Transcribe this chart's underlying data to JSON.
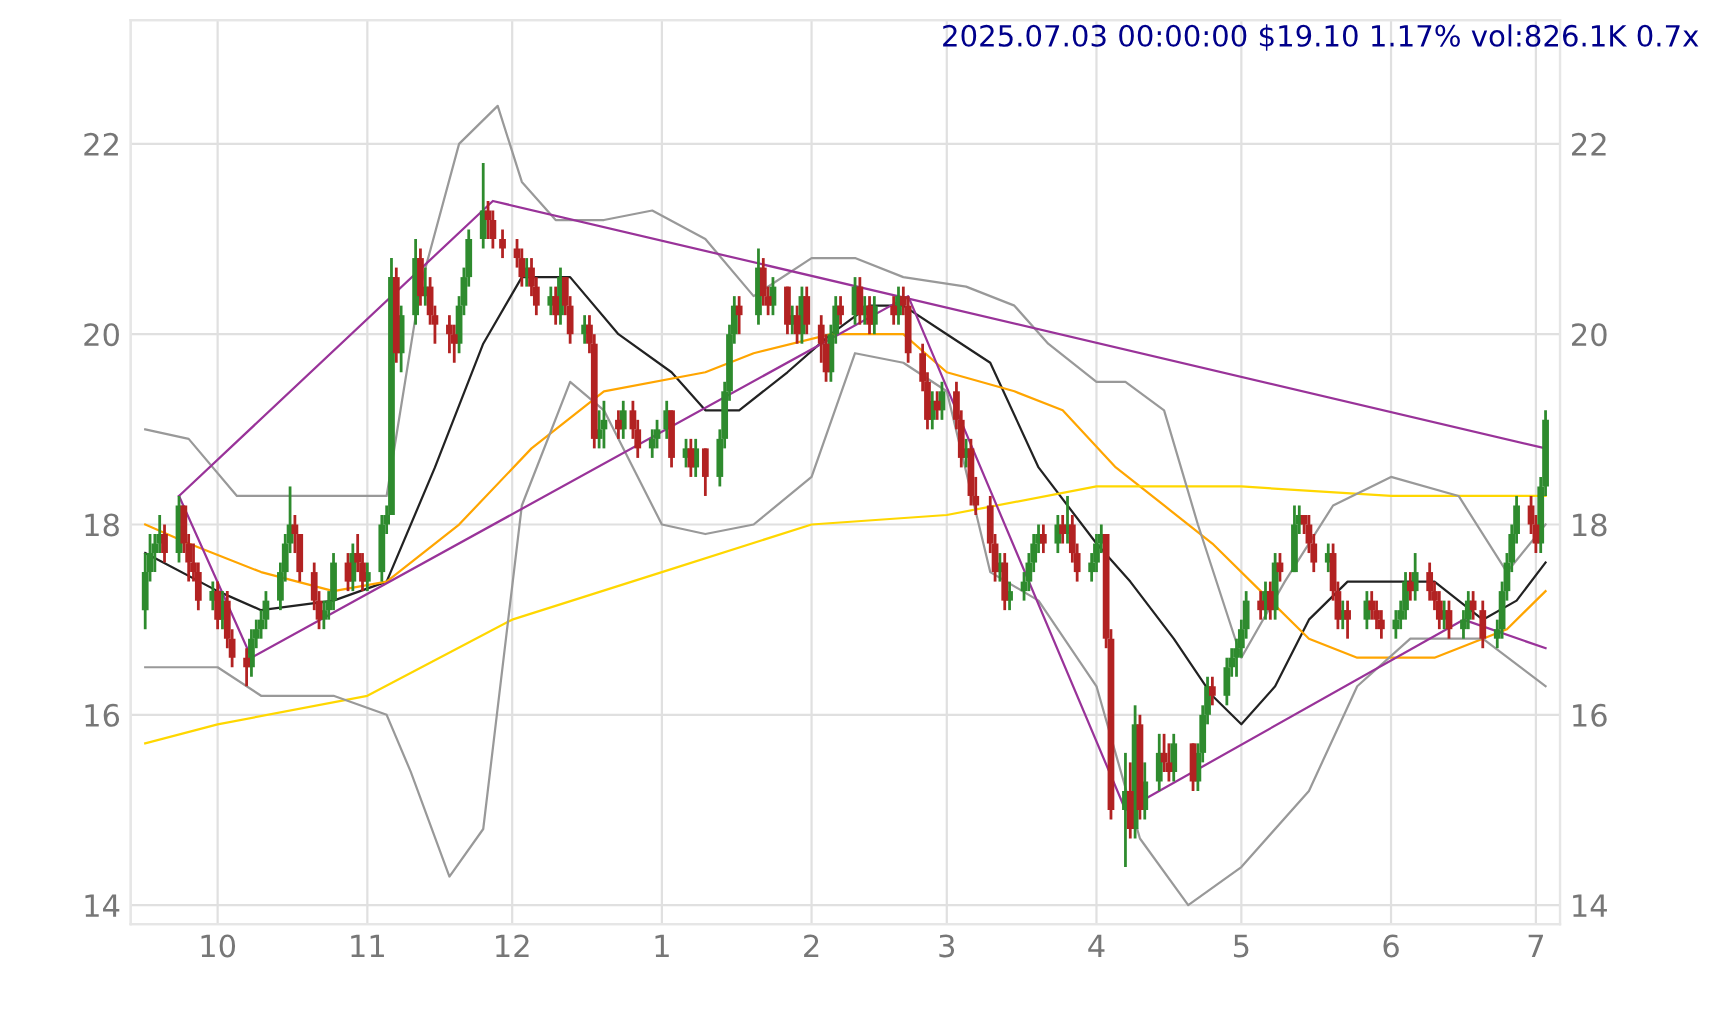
{
  "chart_data": {
    "type": "candlestick",
    "title": "2025.07.03 00:00:00 $19.10 1.17% vol:826.1K 0.7x",
    "xlim": [
      "2024-09-13",
      "2025-07-06"
    ],
    "xticks": [
      {
        "value": "2024-10-01",
        "label": "10"
      },
      {
        "value": "2024-11-01",
        "label": "11"
      },
      {
        "value": "2024-12-01",
        "label": "12"
      },
      {
        "value": "2025-01-01",
        "label": "1"
      },
      {
        "value": "2025-02-01",
        "label": "2"
      },
      {
        "value": "2025-03-01",
        "label": "3"
      },
      {
        "value": "2025-04-01",
        "label": "4"
      },
      {
        "value": "2025-05-01",
        "label": "5"
      },
      {
        "value": "2025-06-01",
        "label": "6"
      },
      {
        "value": "2025-07-01",
        "label": "7"
      }
    ],
    "ylim": [
      13.8,
      23.3
    ],
    "yticks": [
      14,
      16,
      18,
      20,
      22
    ],
    "y2lim": [
      13.8,
      23.3
    ],
    "y2ticks": [
      14,
      16,
      18,
      20,
      22
    ],
    "grid": true,
    "series": [
      {
        "color": "#2e8b2e",
        "x": [
          "2024-09-16",
          "2024-09-17",
          "2024-09-18",
          "2024-09-19",
          "2024-09-23",
          "2024-09-30",
          "2024-10-02",
          "2024-10-08",
          "2024-10-09",
          "2024-10-10",
          "2024-10-11",
          "2024-10-14",
          "2024-10-15",
          "2024-10-16",
          "2024-10-23",
          "2024-10-24",
          "2024-10-25",
          "2024-10-29",
          "2024-11-01",
          "2024-11-04",
          "2024-11-05",
          "2024-11-06",
          "2024-11-08",
          "2024-11-11",
          "2024-11-13",
          "2024-11-20",
          "2024-11-21",
          "2024-11-22",
          "2024-11-25",
          "2024-12-04",
          "2024-12-09",
          "2024-12-11",
          "2024-12-16",
          "2024-12-19",
          "2024-12-20",
          "2024-12-24",
          "2024-12-30",
          "2024-12-31",
          "2025-01-02",
          "2025-01-06",
          "2025-01-08",
          "2025-01-13",
          "2025-01-14",
          "2025-01-15",
          "2025-01-16",
          "2025-01-21",
          "2025-01-24",
          "2025-01-28",
          "2025-01-30",
          "2025-02-05",
          "2025-02-06",
          "2025-02-10",
          "2025-02-12",
          "2025-02-14",
          "2025-02-19",
          "2025-02-26",
          "2025-02-28",
          "2025-03-05",
          "2025-03-12",
          "2025-03-14",
          "2025-03-17",
          "2025-03-18",
          "2025-03-19",
          "2025-03-20",
          "2025-03-24",
          "2025-03-26",
          "2025-03-31",
          "2025-04-01",
          "2025-04-02",
          "2025-04-07",
          "2025-04-09",
          "2025-04-11",
          "2025-04-14",
          "2025-04-17",
          "2025-04-22",
          "2025-04-23",
          "2025-04-24",
          "2025-04-28",
          "2025-04-29",
          "2025-04-30",
          "2025-05-01",
          "2025-05-02",
          "2025-05-06",
          "2025-05-08",
          "2025-05-12",
          "2025-05-13",
          "2025-05-19",
          "2025-05-22",
          "2025-05-27",
          "2025-06-02",
          "2025-06-03",
          "2025-06-04",
          "2025-06-06",
          "2025-06-12",
          "2025-06-16",
          "2025-06-17",
          "2025-06-23",
          "2025-06-24",
          "2025-06-25",
          "2025-06-26",
          "2025-06-27",
          "2025-07-02",
          "2025-07-03"
        ],
        "ohlc": [
          [
            17.1,
            17.7,
            16.9,
            17.5
          ],
          [
            17.5,
            17.9,
            17.4,
            17.7
          ],
          [
            17.7,
            17.9,
            17.5,
            17.8
          ],
          [
            17.8,
            18.1,
            17.7,
            17.9
          ],
          [
            17.7,
            18.3,
            17.6,
            18.2
          ],
          [
            17.2,
            17.4,
            17.1,
            17.3
          ],
          [
            17.0,
            17.3,
            16.9,
            17.2
          ],
          [
            16.5,
            16.9,
            16.4,
            16.8
          ],
          [
            16.8,
            17.0,
            16.7,
            16.9
          ],
          [
            16.9,
            17.1,
            16.8,
            17.0
          ],
          [
            17.0,
            17.3,
            16.9,
            17.2
          ],
          [
            17.2,
            17.6,
            17.1,
            17.5
          ],
          [
            17.5,
            17.9,
            17.4,
            17.8
          ],
          [
            17.8,
            18.4,
            17.7,
            18.0
          ],
          [
            17.0,
            17.2,
            16.9,
            17.1
          ],
          [
            17.1,
            17.3,
            17.0,
            17.2
          ],
          [
            17.2,
            17.7,
            17.1,
            17.6
          ],
          [
            17.4,
            17.8,
            17.3,
            17.7
          ],
          [
            17.4,
            17.6,
            17.3,
            17.5
          ],
          [
            17.5,
            18.1,
            17.4,
            18.0
          ],
          [
            18.0,
            18.2,
            17.9,
            18.1
          ],
          [
            18.1,
            20.8,
            18.1,
            20.6
          ],
          [
            19.8,
            20.3,
            19.6,
            20.2
          ],
          [
            20.2,
            21.0,
            20.1,
            20.8
          ],
          [
            20.4,
            20.7,
            20.3,
            20.5
          ],
          [
            19.9,
            20.4,
            19.8,
            20.3
          ],
          [
            20.3,
            20.7,
            20.2,
            20.6
          ],
          [
            20.6,
            21.1,
            20.5,
            21.0
          ],
          [
            21.0,
            21.8,
            20.9,
            21.3
          ],
          [
            20.6,
            20.8,
            20.5,
            20.7
          ],
          [
            20.3,
            20.5,
            20.2,
            20.4
          ],
          [
            20.2,
            20.7,
            20.1,
            20.6
          ],
          [
            20.0,
            20.2,
            19.9,
            20.1
          ],
          [
            18.9,
            19.2,
            18.8,
            19.0
          ],
          [
            19.0,
            19.3,
            18.8,
            19.1
          ],
          [
            19.0,
            19.3,
            18.9,
            19.2
          ],
          [
            18.8,
            19.0,
            18.7,
            18.9
          ],
          [
            18.9,
            19.1,
            18.8,
            19.0
          ],
          [
            19.0,
            19.3,
            18.9,
            19.2
          ],
          [
            18.7,
            18.9,
            18.6,
            18.8
          ],
          [
            18.6,
            18.9,
            18.5,
            18.8
          ],
          [
            18.5,
            19.0,
            18.4,
            18.9
          ],
          [
            18.9,
            19.5,
            18.8,
            19.4
          ],
          [
            19.4,
            20.1,
            19.3,
            20.0
          ],
          [
            20.0,
            20.4,
            19.9,
            20.3
          ],
          [
            20.2,
            20.9,
            20.1,
            20.7
          ],
          [
            20.3,
            20.6,
            20.2,
            20.5
          ],
          [
            20.1,
            20.3,
            20.0,
            20.2
          ],
          [
            20.0,
            20.5,
            19.9,
            20.4
          ],
          [
            19.6,
            20.1,
            19.5,
            20.0
          ],
          [
            20.0,
            20.4,
            19.9,
            20.3
          ],
          [
            20.2,
            20.6,
            20.1,
            20.5
          ],
          [
            20.2,
            20.4,
            20.1,
            20.3
          ],
          [
            20.1,
            20.4,
            20.0,
            20.3
          ],
          [
            20.2,
            20.5,
            20.1,
            20.4
          ],
          [
            19.1,
            19.4,
            19.0,
            19.3
          ],
          [
            19.2,
            19.5,
            19.1,
            19.4
          ],
          [
            18.7,
            18.9,
            18.6,
            18.8
          ],
          [
            17.5,
            17.7,
            17.4,
            17.6
          ],
          [
            17.2,
            17.4,
            17.1,
            17.3
          ],
          [
            17.3,
            17.5,
            17.2,
            17.4
          ],
          [
            17.4,
            17.7,
            17.3,
            17.6
          ],
          [
            17.6,
            17.9,
            17.5,
            17.8
          ],
          [
            17.8,
            18.0,
            17.7,
            17.9
          ],
          [
            17.8,
            18.1,
            17.7,
            18.0
          ],
          [
            17.9,
            18.3,
            17.8,
            18.0
          ],
          [
            17.5,
            17.7,
            17.4,
            17.6
          ],
          [
            17.6,
            17.9,
            17.5,
            17.8
          ],
          [
            17.8,
            18.0,
            17.7,
            17.9
          ],
          [
            15.0,
            15.6,
            14.4,
            15.2
          ],
          [
            14.8,
            16.1,
            14.7,
            15.9
          ],
          [
            15.0,
            15.5,
            14.9,
            15.3
          ],
          [
            15.3,
            15.8,
            15.2,
            15.6
          ],
          [
            15.4,
            15.8,
            15.3,
            15.7
          ],
          [
            15.3,
            15.7,
            15.2,
            15.6
          ],
          [
            15.6,
            16.1,
            15.5,
            16.0
          ],
          [
            16.0,
            16.4,
            15.9,
            16.3
          ],
          [
            16.2,
            16.6,
            16.1,
            16.5
          ],
          [
            16.5,
            16.7,
            16.4,
            16.6
          ],
          [
            16.6,
            16.8,
            16.4,
            16.7
          ],
          [
            16.7,
            17.0,
            16.6,
            16.9
          ],
          [
            16.9,
            17.3,
            16.8,
            17.2
          ],
          [
            17.1,
            17.4,
            17.0,
            17.3
          ],
          [
            17.1,
            17.7,
            17.0,
            17.6
          ],
          [
            17.5,
            18.2,
            17.5,
            18.0
          ],
          [
            18.0,
            18.2,
            17.9,
            18.1
          ],
          [
            17.6,
            17.8,
            17.5,
            17.7
          ],
          [
            17.0,
            17.2,
            16.9,
            17.1
          ],
          [
            17.0,
            17.3,
            16.9,
            17.2
          ],
          [
            16.9,
            17.1,
            16.8,
            17.0
          ],
          [
            17.0,
            17.2,
            16.9,
            17.1
          ],
          [
            17.1,
            17.5,
            17.0,
            17.4
          ],
          [
            17.3,
            17.7,
            17.2,
            17.5
          ],
          [
            17.0,
            17.2,
            16.9,
            17.1
          ],
          [
            16.9,
            17.1,
            16.8,
            17.0
          ],
          [
            17.0,
            17.3,
            16.9,
            17.2
          ],
          [
            16.8,
            17.0,
            16.7,
            16.9
          ],
          [
            16.9,
            17.4,
            16.8,
            17.3
          ],
          [
            17.3,
            17.7,
            17.2,
            17.6
          ],
          [
            17.6,
            18.0,
            17.5,
            17.9
          ],
          [
            17.9,
            18.3,
            17.8,
            18.2
          ],
          [
            17.8,
            18.5,
            17.7,
            18.4
          ],
          [
            18.4,
            19.2,
            18.3,
            19.1
          ]
        ]
      },
      {
        "color": "#b22222",
        "x": [
          "2024-09-20",
          "2024-09-24",
          "2024-09-25",
          "2024-09-26",
          "2024-09-27",
          "2024-10-01",
          "2024-10-03",
          "2024-10-04",
          "2024-10-07",
          "2024-10-17",
          "2024-10-18",
          "2024-10-21",
          "2024-10-22",
          "2024-10-28",
          "2024-10-30",
          "2024-10-31",
          "2024-11-07",
          "2024-11-12",
          "2024-11-14",
          "2024-11-15",
          "2024-11-18",
          "2024-11-19",
          "2024-11-26",
          "2024-11-27",
          "2024-11-29",
          "2024-12-02",
          "2024-12-03",
          "2024-12-05",
          "2024-12-06",
          "2024-12-10",
          "2024-12-12",
          "2024-12-13",
          "2024-12-17",
          "2024-12-18",
          "2024-12-23",
          "2024-12-26",
          "2024-12-27",
          "2025-01-03",
          "2025-01-07",
          "2025-01-10",
          "2025-01-17",
          "2025-01-22",
          "2025-01-23",
          "2025-01-27",
          "2025-01-29",
          "2025-01-31",
          "2025-02-03",
          "2025-02-04",
          "2025-02-07",
          "2025-02-11",
          "2025-02-13",
          "2025-02-18",
          "2025-02-20",
          "2025-02-21",
          "2025-02-24",
          "2025-02-25",
          "2025-02-27",
          "2025-03-03",
          "2025-03-04",
          "2025-03-06",
          "2025-03-07",
          "2025-03-10",
          "2025-03-11",
          "2025-03-13",
          "2025-03-21",
          "2025-03-25",
          "2025-03-27",
          "2025-03-28",
          "2025-04-03",
          "2025-04-04",
          "2025-04-08",
          "2025-04-10",
          "2025-04-15",
          "2025-04-16",
          "2025-04-21",
          "2025-04-25",
          "2025-05-05",
          "2025-05-07",
          "2025-05-09",
          "2025-05-14",
          "2025-05-15",
          "2025-05-16",
          "2025-05-20",
          "2025-05-21",
          "2025-05-23",
          "2025-05-28",
          "2025-05-29",
          "2025-05-30",
          "2025-06-05",
          "2025-06-09",
          "2025-06-10",
          "2025-06-11",
          "2025-06-13",
          "2025-06-18",
          "2025-06-20",
          "2025-06-30",
          "2025-07-01"
        ],
        "ohlc": [
          [
            17.9,
            18.0,
            17.6,
            17.7
          ],
          [
            18.2,
            18.2,
            17.7,
            17.8
          ],
          [
            17.8,
            17.9,
            17.4,
            17.6
          ],
          [
            17.6,
            17.8,
            17.4,
            17.5
          ],
          [
            17.5,
            17.6,
            17.1,
            17.2
          ],
          [
            17.3,
            17.4,
            16.9,
            17.0
          ],
          [
            17.2,
            17.3,
            16.7,
            16.8
          ],
          [
            16.8,
            16.9,
            16.5,
            16.6
          ],
          [
            16.6,
            16.7,
            16.3,
            16.5
          ],
          [
            18.0,
            18.1,
            17.7,
            17.9
          ],
          [
            17.9,
            17.9,
            17.4,
            17.5
          ],
          [
            17.5,
            17.6,
            17.1,
            17.2
          ],
          [
            17.2,
            17.3,
            16.9,
            17.0
          ],
          [
            17.6,
            17.7,
            17.3,
            17.4
          ],
          [
            17.7,
            17.9,
            17.5,
            17.6
          ],
          [
            17.6,
            17.7,
            17.3,
            17.4
          ],
          [
            20.6,
            20.7,
            19.7,
            19.8
          ],
          [
            20.8,
            20.9,
            20.3,
            20.4
          ],
          [
            20.5,
            20.6,
            20.1,
            20.2
          ],
          [
            20.2,
            20.3,
            19.9,
            20.1
          ],
          [
            20.1,
            20.2,
            19.8,
            20.0
          ],
          [
            20.0,
            20.1,
            19.7,
            19.9
          ],
          [
            21.3,
            21.4,
            21.0,
            21.2
          ],
          [
            21.2,
            21.3,
            20.9,
            21.0
          ],
          [
            21.0,
            21.1,
            20.8,
            20.9
          ],
          [
            20.9,
            21.0,
            20.7,
            20.8
          ],
          [
            20.8,
            20.9,
            20.5,
            20.6
          ],
          [
            20.7,
            20.8,
            20.4,
            20.5
          ],
          [
            20.5,
            20.6,
            20.2,
            20.3
          ],
          [
            20.4,
            20.5,
            20.1,
            20.2
          ],
          [
            20.6,
            20.6,
            20.2,
            20.3
          ],
          [
            20.3,
            20.4,
            19.9,
            20.0
          ],
          [
            20.1,
            20.2,
            19.8,
            19.9
          ],
          [
            19.9,
            20.0,
            18.8,
            18.9
          ],
          [
            19.1,
            19.2,
            18.9,
            19.0
          ],
          [
            19.2,
            19.3,
            18.9,
            19.0
          ],
          [
            19.0,
            19.1,
            18.7,
            18.8
          ],
          [
            19.2,
            19.2,
            18.6,
            18.7
          ],
          [
            18.8,
            18.9,
            18.5,
            18.6
          ],
          [
            18.8,
            18.8,
            18.3,
            18.5
          ],
          [
            20.3,
            20.4,
            20.0,
            20.2
          ],
          [
            20.7,
            20.8,
            20.3,
            20.4
          ],
          [
            20.4,
            20.5,
            20.2,
            20.3
          ],
          [
            20.5,
            20.5,
            20.0,
            20.1
          ],
          [
            20.2,
            20.3,
            19.9,
            20.0
          ],
          [
            20.4,
            20.5,
            20.0,
            20.1
          ],
          [
            20.1,
            20.2,
            19.7,
            19.9
          ],
          [
            19.9,
            20.0,
            19.5,
            19.6
          ],
          [
            20.3,
            20.4,
            20.1,
            20.2
          ],
          [
            20.5,
            20.6,
            20.1,
            20.2
          ],
          [
            20.3,
            20.4,
            20.0,
            20.1
          ],
          [
            20.3,
            20.4,
            20.1,
            20.2
          ],
          [
            20.4,
            20.5,
            20.2,
            20.3
          ],
          [
            20.3,
            20.4,
            19.7,
            19.8
          ],
          [
            19.8,
            19.9,
            19.4,
            19.5
          ],
          [
            19.5,
            19.6,
            19.0,
            19.1
          ],
          [
            19.3,
            19.4,
            19.1,
            19.2
          ],
          [
            19.4,
            19.5,
            19.0,
            19.1
          ],
          [
            19.1,
            19.2,
            18.6,
            18.7
          ],
          [
            18.8,
            18.9,
            18.2,
            18.3
          ],
          [
            18.3,
            18.5,
            18.1,
            18.2
          ],
          [
            18.2,
            18.3,
            17.7,
            17.8
          ],
          [
            17.8,
            17.9,
            17.4,
            17.5
          ],
          [
            17.6,
            17.7,
            17.1,
            17.2
          ],
          [
            17.9,
            18.0,
            17.7,
            17.8
          ],
          [
            18.0,
            18.1,
            17.8,
            17.9
          ],
          [
            18.0,
            18.1,
            17.6,
            17.7
          ],
          [
            17.7,
            17.8,
            17.4,
            17.5
          ],
          [
            17.9,
            17.9,
            16.7,
            16.8
          ],
          [
            16.8,
            16.9,
            14.9,
            15.0
          ],
          [
            15.2,
            15.5,
            14.7,
            14.8
          ],
          [
            15.9,
            16.0,
            14.9,
            15.0
          ],
          [
            15.6,
            15.8,
            15.4,
            15.5
          ],
          [
            15.5,
            15.7,
            15.3,
            15.4
          ],
          [
            15.7,
            15.7,
            15.2,
            15.3
          ],
          [
            16.3,
            16.4,
            16.1,
            16.2
          ],
          [
            17.2,
            17.3,
            17.0,
            17.1
          ],
          [
            17.3,
            17.4,
            17.0,
            17.1
          ],
          [
            17.6,
            17.7,
            17.4,
            17.5
          ],
          [
            18.1,
            18.1,
            17.9,
            18.0
          ],
          [
            18.0,
            18.1,
            17.7,
            17.8
          ],
          [
            17.8,
            17.9,
            17.5,
            17.6
          ],
          [
            17.7,
            17.8,
            17.2,
            17.3
          ],
          [
            17.3,
            17.4,
            16.9,
            17.0
          ],
          [
            17.1,
            17.2,
            16.8,
            17.0
          ],
          [
            17.2,
            17.3,
            17.0,
            17.1
          ],
          [
            17.1,
            17.2,
            16.9,
            17.0
          ],
          [
            17.0,
            17.1,
            16.8,
            16.9
          ],
          [
            17.4,
            17.5,
            17.2,
            17.3
          ],
          [
            17.5,
            17.6,
            17.2,
            17.3
          ],
          [
            17.3,
            17.4,
            17.1,
            17.2
          ],
          [
            17.2,
            17.3,
            16.9,
            17.0
          ],
          [
            17.1,
            17.2,
            16.8,
            16.9
          ],
          [
            17.2,
            17.3,
            17.0,
            17.1
          ],
          [
            17.1,
            17.2,
            16.7,
            16.8
          ],
          [
            18.2,
            18.3,
            17.9,
            18.0
          ],
          [
            18.0,
            18.1,
            17.7,
            17.8
          ]
        ]
      },
      {
        "type": "line",
        "color": "#222222",
        "x": [
          "2024-09-16",
          "2024-10-01",
          "2024-10-10",
          "2024-10-25",
          "2024-11-05",
          "2024-11-15",
          "2024-11-25",
          "2024-12-03",
          "2024-12-13",
          "2024-12-23",
          "2025-01-03",
          "2025-01-10",
          "2025-01-17",
          "2025-01-27",
          "2025-02-05",
          "2025-02-13",
          "2025-02-20",
          "2025-03-01",
          "2025-03-10",
          "2025-03-20",
          "2025-04-01",
          "2025-04-08",
          "2025-04-17",
          "2025-04-25",
          "2025-05-01",
          "2025-05-08",
          "2025-05-15",
          "2025-05-23",
          "2025-06-01",
          "2025-06-10",
          "2025-06-20",
          "2025-06-27",
          "2025-07-03"
        ],
        "values": [
          17.7,
          17.3,
          17.1,
          17.2,
          17.4,
          18.6,
          19.9,
          20.6,
          20.6,
          20.0,
          19.6,
          19.2,
          19.2,
          19.6,
          20.0,
          20.3,
          20.3,
          20.0,
          19.7,
          18.6,
          17.8,
          17.4,
          16.8,
          16.2,
          15.9,
          16.3,
          17.0,
          17.4,
          17.4,
          17.4,
          17.0,
          17.2,
          17.6
        ]
      },
      {
        "type": "line",
        "color": "#ffa500",
        "x": [
          "2024-09-16",
          "2024-09-25",
          "2024-10-10",
          "2024-10-25",
          "2024-11-05",
          "2024-11-20",
          "2024-12-05",
          "2024-12-20",
          "2025-01-10",
          "2025-01-20",
          "2025-02-05",
          "2025-02-20",
          "2025-03-01",
          "2025-03-15",
          "2025-03-25",
          "2025-04-05",
          "2025-04-15",
          "2025-04-25",
          "2025-05-05",
          "2025-05-15",
          "2025-05-25",
          "2025-06-10",
          "2025-06-25",
          "2025-07-03"
        ],
        "values": [
          18.0,
          17.8,
          17.5,
          17.3,
          17.4,
          18.0,
          18.8,
          19.4,
          19.6,
          19.8,
          20.0,
          20.0,
          19.6,
          19.4,
          19.2,
          18.6,
          18.2,
          17.8,
          17.3,
          16.8,
          16.6,
          16.6,
          16.9,
          17.3
        ]
      },
      {
        "type": "line",
        "color": "#ffd700",
        "x": [
          "2024-09-16",
          "2024-10-01",
          "2024-11-01",
          "2024-12-01",
          "2025-01-01",
          "2025-02-01",
          "2025-03-01",
          "2025-04-01",
          "2025-05-01",
          "2025-06-01",
          "2025-07-03"
        ],
        "values": [
          15.7,
          15.9,
          16.2,
          17.0,
          17.5,
          18.0,
          18.1,
          18.4,
          18.4,
          18.3,
          18.3
        ]
      },
      {
        "type": "line",
        "color": "#999999",
        "x": [
          "2024-09-16",
          "2024-09-25",
          "2024-10-05",
          "2024-10-20",
          "2024-11-05",
          "2024-11-12",
          "2024-11-20",
          "2024-11-28",
          "2024-12-03",
          "2024-12-10",
          "2024-12-20",
          "2024-12-30",
          "2025-01-10",
          "2025-01-20",
          "2025-02-01",
          "2025-02-10",
          "2025-02-20",
          "2025-03-05",
          "2025-03-15",
          "2025-03-22",
          "2025-04-01",
          "2025-04-07",
          "2025-04-15",
          "2025-04-22",
          "2025-05-01",
          "2025-05-10",
          "2025-05-20",
          "2025-06-01",
          "2025-06-15",
          "2025-06-25",
          "2025-07-03"
        ],
        "values": [
          19.0,
          18.9,
          18.3,
          18.3,
          18.3,
          20.5,
          22.0,
          22.4,
          21.6,
          21.2,
          21.2,
          21.3,
          21.0,
          20.4,
          20.8,
          20.8,
          20.6,
          20.5,
          20.3,
          19.9,
          19.5,
          19.5,
          19.2,
          18.0,
          16.6,
          17.4,
          18.2,
          18.5,
          18.3,
          17.5,
          18.0
        ]
      },
      {
        "type": "line",
        "color": "#999999",
        "x": [
          "2024-09-16",
          "2024-10-01",
          "2024-10-10",
          "2024-10-25",
          "2024-11-05",
          "2024-11-10",
          "2024-11-18",
          "2024-11-25",
          "2024-12-03",
          "2024-12-13",
          "2024-12-20",
          "2025-01-01",
          "2025-01-10",
          "2025-01-20",
          "2025-02-01",
          "2025-02-10",
          "2025-02-20",
          "2025-03-01",
          "2025-03-10",
          "2025-03-20",
          "2025-04-01",
          "2025-04-10",
          "2025-04-20",
          "2025-05-01",
          "2025-05-15",
          "2025-05-25",
          "2025-06-05",
          "2025-06-20",
          "2025-07-03"
        ],
        "values": [
          16.5,
          16.5,
          16.2,
          16.2,
          16.0,
          15.4,
          14.3,
          14.8,
          18.2,
          19.5,
          19.2,
          18.0,
          17.9,
          18.0,
          18.5,
          19.8,
          19.7,
          19.4,
          17.5,
          17.2,
          16.3,
          14.7,
          14.0,
          14.4,
          15.2,
          16.3,
          16.8,
          16.8,
          16.3
        ]
      },
      {
        "type": "line",
        "color": "#993399",
        "x": [
          "2024-09-23",
          "2024-11-27",
          "2025-07-03"
        ],
        "values": [
          18.3,
          21.4,
          18.8
        ]
      },
      {
        "type": "line",
        "color": "#993399",
        "x": [
          "2024-09-23",
          "2024-10-08",
          "2025-02-21",
          "2025-04-07",
          "2025-06-16",
          "2025-07-03"
        ],
        "values": [
          18.3,
          16.6,
          20.4,
          15.0,
          17.0,
          16.7
        ]
      }
    ]
  }
}
